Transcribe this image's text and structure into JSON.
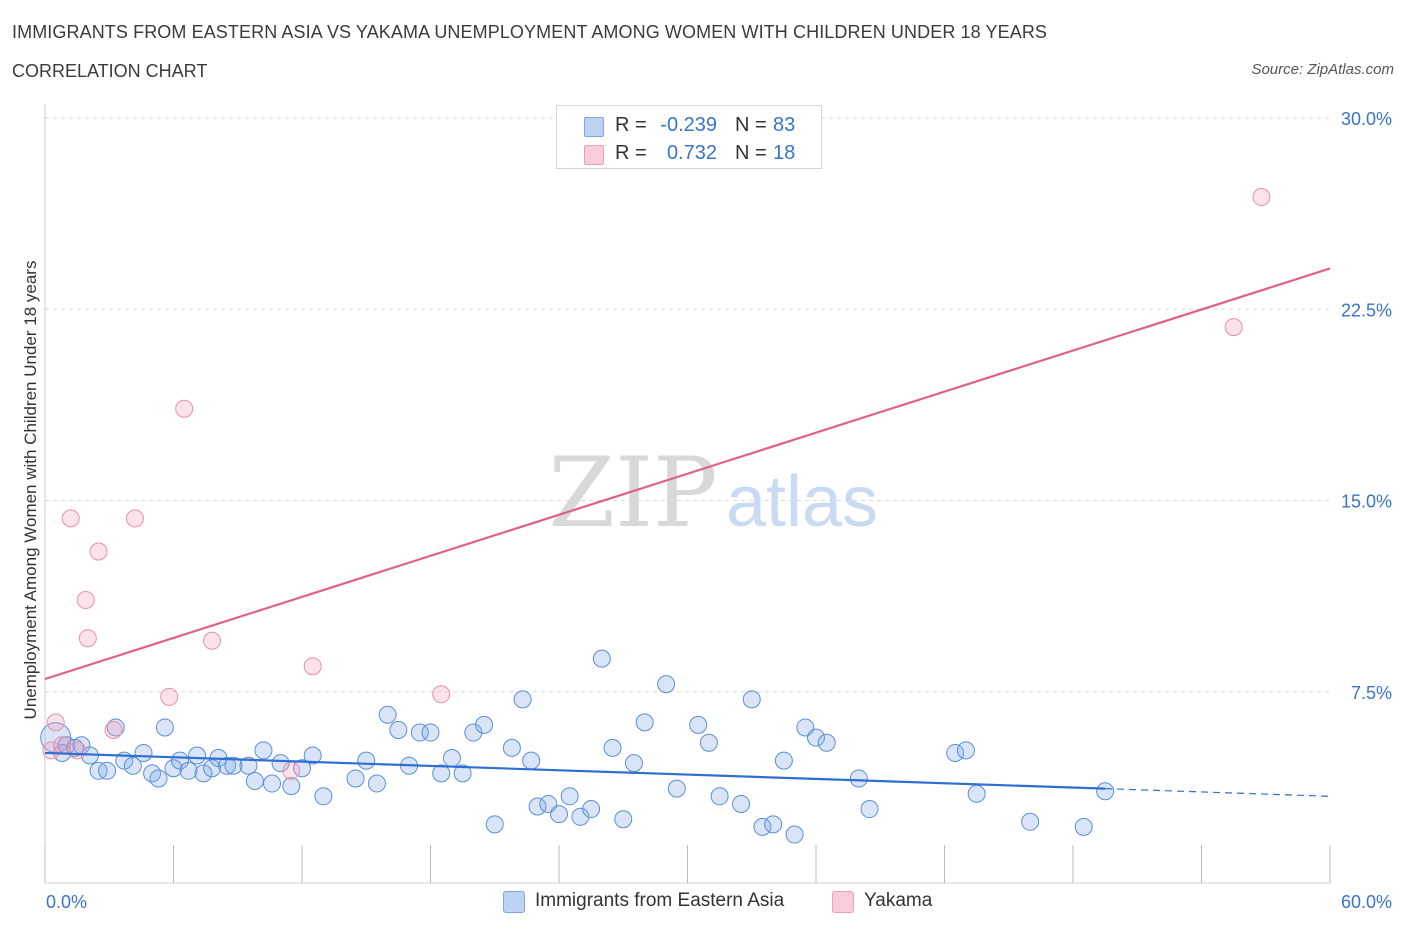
{
  "header": {
    "title": "IMMIGRANTS FROM EASTERN ASIA VS YAKAMA UNEMPLOYMENT AMONG WOMEN WITH CHILDREN UNDER 18 YEARS",
    "subtitle": "CORRELATION CHART",
    "source": "Source: ZipAtlas.com"
  },
  "legend_top": [
    {
      "r_label": "R =",
      "r_value": "-0.239",
      "n_label": "N =",
      "n_value": "83",
      "color": "#a9c6f0"
    },
    {
      "r_label": "R =",
      "r_value": "0.732",
      "n_label": "N =",
      "n_value": "18",
      "color": "#f4b6c9"
    }
  ],
  "legend_bottom": [
    {
      "label": "Immigrants from Eastern Asia",
      "color": "#a9c6f0"
    },
    {
      "label": "Yakama",
      "color": "#f4b6c9"
    }
  ],
  "colors": {
    "blue_fill": "rgba(130,170,230,0.30)",
    "blue_stroke": "#5b8fd8",
    "blue_line": "#2f6fd0",
    "pink_fill": "rgba(244,160,185,0.30)",
    "pink_stroke": "#ea8fae",
    "pink_line": "#e0608a",
    "axis_text": "#3a73c9",
    "grid": "#d9d9d9"
  },
  "chart_data": {
    "type": "scatter",
    "title": "IMMIGRANTS FROM EASTERN ASIA VS YAKAMA UNEMPLOYMENT AMONG WOMEN WITH CHILDREN UNDER 18 YEARS",
    "xlabel": "",
    "ylabel": "Unemployment Among Women with Children Under 18 years",
    "xlim": [
      0,
      60
    ],
    "ylim": [
      0,
      30
    ],
    "x_tick_labels": [
      "0.0%",
      "60.0%"
    ],
    "y_ticks": [
      7.5,
      15.0,
      22.5,
      30.0
    ],
    "y_tick_labels": [
      "7.5%",
      "15.0%",
      "22.5%",
      "30.0%"
    ],
    "watermark": {
      "part1": "ZIP",
      "part2": "atlas"
    },
    "series": [
      {
        "name": "Immigrants from Eastern Asia",
        "trend": {
          "x0": 0,
          "y0": 5.1,
          "x1": 49.5,
          "y1": 3.7,
          "dash_x1": 60,
          "dash_y1": 3.4
        },
        "points": [
          [
            0.5,
            5.7,
            "large"
          ],
          [
            0.8,
            5.1
          ],
          [
            1.0,
            5.4
          ],
          [
            1.4,
            5.3
          ],
          [
            1.7,
            5.4
          ],
          [
            2.1,
            5.0
          ],
          [
            2.5,
            4.4
          ],
          [
            2.9,
            4.4
          ],
          [
            3.3,
            6.1
          ],
          [
            3.7,
            4.8
          ],
          [
            4.1,
            4.6
          ],
          [
            4.6,
            5.1
          ],
          [
            5.0,
            4.3
          ],
          [
            5.3,
            4.1
          ],
          [
            5.6,
            6.1
          ],
          [
            6.0,
            4.5
          ],
          [
            6.3,
            4.8
          ],
          [
            6.7,
            4.4
          ],
          [
            7.1,
            5.0
          ],
          [
            7.4,
            4.3
          ],
          [
            7.8,
            4.5
          ],
          [
            8.1,
            4.9
          ],
          [
            8.5,
            4.6
          ],
          [
            8.8,
            4.6
          ],
          [
            9.5,
            4.6
          ],
          [
            9.8,
            4.0
          ],
          [
            10.2,
            5.2
          ],
          [
            10.6,
            3.9
          ],
          [
            11.0,
            4.7
          ],
          [
            11.5,
            3.8
          ],
          [
            12.0,
            4.5
          ],
          [
            12.5,
            5.0
          ],
          [
            13.0,
            3.4
          ],
          [
            14.5,
            4.1
          ],
          [
            15.0,
            4.8
          ],
          [
            15.5,
            3.9
          ],
          [
            16.0,
            6.6
          ],
          [
            16.5,
            6.0
          ],
          [
            17.0,
            4.6
          ],
          [
            17.5,
            5.9
          ],
          [
            18.0,
            5.9
          ],
          [
            18.5,
            4.3
          ],
          [
            19.0,
            4.9
          ],
          [
            19.5,
            4.3
          ],
          [
            20.0,
            5.9
          ],
          [
            20.5,
            6.2
          ],
          [
            21.0,
            2.3
          ],
          [
            21.8,
            5.3
          ],
          [
            22.3,
            7.2
          ],
          [
            22.7,
            4.8
          ],
          [
            23.0,
            3.0
          ],
          [
            23.5,
            3.1
          ],
          [
            24.0,
            2.7
          ],
          [
            24.5,
            3.4
          ],
          [
            25.0,
            2.6
          ],
          [
            25.5,
            2.9
          ],
          [
            26.0,
            8.8
          ],
          [
            26.5,
            5.3
          ],
          [
            27.0,
            2.5
          ],
          [
            27.5,
            4.7
          ],
          [
            28.0,
            6.3
          ],
          [
            29.0,
            7.8
          ],
          [
            29.5,
            3.7
          ],
          [
            30.5,
            6.2
          ],
          [
            31.0,
            5.5
          ],
          [
            31.5,
            3.4
          ],
          [
            32.5,
            3.1
          ],
          [
            33.0,
            7.2
          ],
          [
            33.5,
            2.2
          ],
          [
            34.0,
            2.3
          ],
          [
            34.5,
            4.8
          ],
          [
            35.0,
            1.9
          ],
          [
            35.5,
            6.1
          ],
          [
            36.0,
            5.7
          ],
          [
            36.5,
            5.5
          ],
          [
            38.0,
            4.1
          ],
          [
            38.5,
            2.9
          ],
          [
            42.5,
            5.1
          ],
          [
            43.0,
            5.2
          ],
          [
            43.5,
            3.5
          ],
          [
            46.0,
            2.4
          ],
          [
            48.5,
            2.2
          ],
          [
            49.5,
            3.6
          ]
        ]
      },
      {
        "name": "Yakama",
        "trend": {
          "x0": 0,
          "y0": 8.0,
          "x1": 60,
          "y1": 24.1
        },
        "points": [
          [
            0.3,
            5.2
          ],
          [
            0.5,
            6.3
          ],
          [
            0.8,
            5.4
          ],
          [
            1.2,
            14.3
          ],
          [
            1.5,
            5.2
          ],
          [
            1.9,
            11.1
          ],
          [
            2.0,
            9.6
          ],
          [
            2.5,
            13.0
          ],
          [
            3.2,
            6.0
          ],
          [
            4.2,
            14.3
          ],
          [
            5.8,
            7.3
          ],
          [
            6.5,
            18.6
          ],
          [
            7.8,
            9.5
          ],
          [
            11.5,
            4.4
          ],
          [
            12.5,
            8.5
          ],
          [
            18.5,
            7.4
          ],
          [
            55.5,
            21.8
          ],
          [
            56.8,
            26.9
          ]
        ]
      }
    ]
  }
}
